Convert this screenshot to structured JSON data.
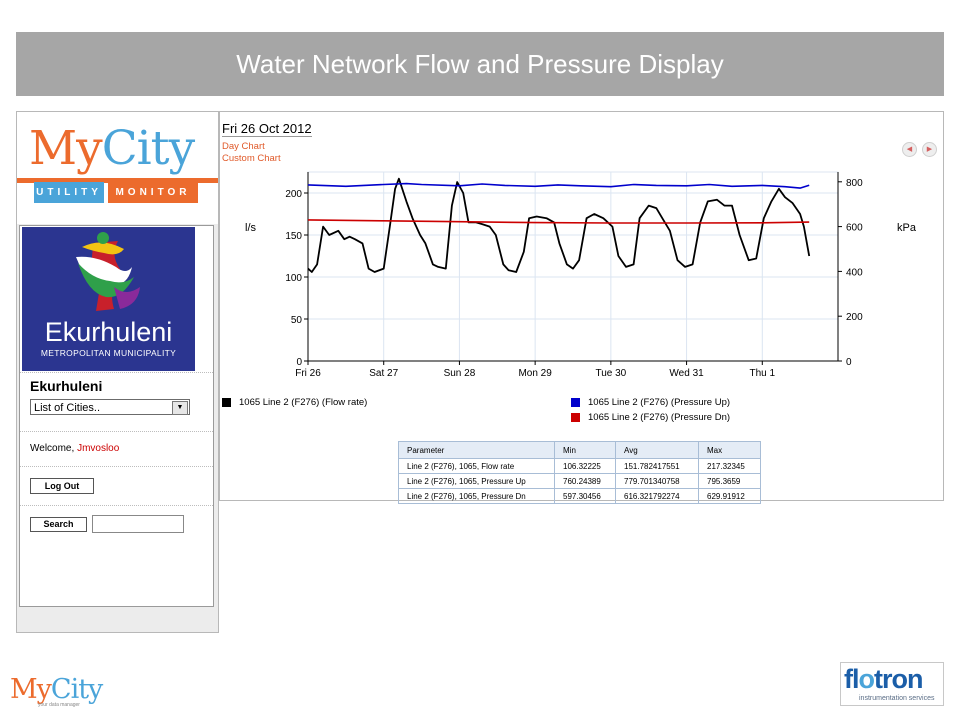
{
  "banner": {
    "title": "Water Network Flow and Pressure Display"
  },
  "sidebar": {
    "logo": {
      "my": "My",
      "city": "City"
    },
    "tabs": {
      "utility": "UTILITY",
      "monitor": "MONITOR"
    },
    "org_logo": {
      "name": "Ekurhuleni",
      "sub": "METROPOLITAN MUNICIPALITY"
    },
    "city_title": "Ekurhuleni",
    "city_select": {
      "value": "List of Cities.."
    },
    "welcome_prefix": "Welcome,",
    "username": "Jmvosloo",
    "logout_label": "Log Out",
    "search_label": "Search",
    "search_value": ""
  },
  "chart_header": {
    "date": "Fri 26 Oct 2012",
    "day_chart_link": "Day Chart",
    "custom_chart_link": "Custom Chart"
  },
  "chart_data": {
    "type": "line",
    "x_ticks": [
      "Fri 26",
      "Sat 27",
      "Sun 28",
      "Mon 29",
      "Tue 30",
      "Wed 31",
      "Thu 1"
    ],
    "x_range_days": [
      0,
      7
    ],
    "y_left": {
      "label": "l/s",
      "range": [
        0,
        225
      ],
      "ticks": [
        0,
        50,
        100,
        150,
        200
      ]
    },
    "y_right": {
      "label": "kPa",
      "range": [
        0,
        843.75
      ],
      "ticks": [
        0,
        200,
        400,
        600,
        800
      ]
    },
    "grid": true,
    "colors": {
      "flow": "#000000",
      "pressure_up": "#0000cc",
      "pressure_dn": "#cc0000"
    },
    "series": [
      {
        "name": "1065 Line 2 (F276) (Flow rate)",
        "axis": "left",
        "points": [
          [
            0,
            110
          ],
          [
            0.05,
            106
          ],
          [
            0.12,
            115
          ],
          [
            0.2,
            160
          ],
          [
            0.28,
            150
          ],
          [
            0.4,
            155
          ],
          [
            0.48,
            145
          ],
          [
            0.55,
            148
          ],
          [
            0.62,
            145
          ],
          [
            0.72,
            140
          ],
          [
            0.8,
            110
          ],
          [
            0.88,
            106
          ],
          [
            1.0,
            110
          ],
          [
            1.08,
            160
          ],
          [
            1.15,
            205
          ],
          [
            1.2,
            217
          ],
          [
            1.3,
            190
          ],
          [
            1.38,
            170
          ],
          [
            1.48,
            150
          ],
          [
            1.55,
            140
          ],
          [
            1.65,
            115
          ],
          [
            1.72,
            112
          ],
          [
            1.82,
            110
          ],
          [
            1.9,
            185
          ],
          [
            1.97,
            213
          ],
          [
            2.05,
            200
          ],
          [
            2.12,
            165
          ],
          [
            2.22,
            165
          ],
          [
            2.3,
            163
          ],
          [
            2.4,
            160
          ],
          [
            2.48,
            150
          ],
          [
            2.58,
            115
          ],
          [
            2.65,
            108
          ],
          [
            2.75,
            106
          ],
          [
            2.85,
            130
          ],
          [
            2.92,
            170
          ],
          [
            3.02,
            172
          ],
          [
            3.15,
            170
          ],
          [
            3.25,
            165
          ],
          [
            3.32,
            140
          ],
          [
            3.42,
            115
          ],
          [
            3.5,
            110
          ],
          [
            3.58,
            120
          ],
          [
            3.68,
            170
          ],
          [
            3.78,
            175
          ],
          [
            3.9,
            170
          ],
          [
            4.02,
            160
          ],
          [
            4.1,
            125
          ],
          [
            4.2,
            112
          ],
          [
            4.3,
            115
          ],
          [
            4.38,
            170
          ],
          [
            4.5,
            185
          ],
          [
            4.6,
            182
          ],
          [
            4.68,
            170
          ],
          [
            4.78,
            155
          ],
          [
            4.88,
            120
          ],
          [
            4.98,
            112
          ],
          [
            5.08,
            115
          ],
          [
            5.18,
            165
          ],
          [
            5.28,
            190
          ],
          [
            5.4,
            192
          ],
          [
            5.5,
            185
          ],
          [
            5.6,
            185
          ],
          [
            5.7,
            150
          ],
          [
            5.82,
            120
          ],
          [
            5.92,
            122
          ],
          [
            6.02,
            170
          ],
          [
            6.12,
            190
          ],
          [
            6.22,
            205
          ],
          [
            6.3,
            195
          ],
          [
            6.4,
            188
          ],
          [
            6.5,
            175
          ],
          [
            6.55,
            160
          ],
          [
            6.62,
            125
          ]
        ]
      },
      {
        "name": "1065 Line 2 (F276) (Pressure Up)",
        "axis": "right",
        "points": [
          [
            0,
            786
          ],
          [
            0.5,
            780
          ],
          [
            1.0,
            788
          ],
          [
            1.3,
            792
          ],
          [
            1.5,
            788
          ],
          [
            2.0,
            782
          ],
          [
            2.3,
            790
          ],
          [
            2.6,
            784
          ],
          [
            3.0,
            780
          ],
          [
            3.3,
            786
          ],
          [
            3.6,
            782
          ],
          [
            4.0,
            778
          ],
          [
            4.3,
            788
          ],
          [
            4.6,
            784
          ],
          [
            5.0,
            782
          ],
          [
            5.3,
            788
          ],
          [
            5.6,
            780
          ],
          [
            6.0,
            784
          ],
          [
            6.3,
            778
          ],
          [
            6.5,
            772
          ],
          [
            6.62,
            785
          ]
        ]
      },
      {
        "name": "1065 Line 2 (F276) (Pressure Dn)",
        "axis": "right",
        "points": [
          [
            0,
            630
          ],
          [
            1,
            626
          ],
          [
            2,
            622
          ],
          [
            3,
            618
          ],
          [
            4,
            616
          ],
          [
            5,
            616
          ],
          [
            6,
            617
          ],
          [
            6.62,
            620
          ]
        ]
      }
    ]
  },
  "legend": {
    "flow": "1065 Line 2 (F276) (Flow rate)",
    "pressure_up": "1065 Line 2 (F276) (Pressure Up)",
    "pressure_dn": "1065 Line 2 (F276) (Pressure Dn)"
  },
  "stats_table": {
    "headers": [
      "Parameter",
      "Min",
      "Avg",
      "Max"
    ],
    "rows": [
      [
        "Line 2 (F276), 1065, Flow rate",
        "106.32225",
        "151.782417551",
        "217.32345"
      ],
      [
        "Line 2 (F276), 1065, Pressure Up",
        "760.24389",
        "779.701340758",
        "795.3659"
      ],
      [
        "Line 2 (F276), 1065, Pressure Dn",
        "597.30456",
        "616.321792274",
        "629.91912"
      ]
    ]
  },
  "footer": {
    "mycity": {
      "my": "My",
      "city": "City",
      "tagline": "your data manager"
    },
    "flotron": {
      "fl": "fl",
      "o": "o",
      "tron": "tron",
      "sub": "instrumentation services"
    }
  }
}
